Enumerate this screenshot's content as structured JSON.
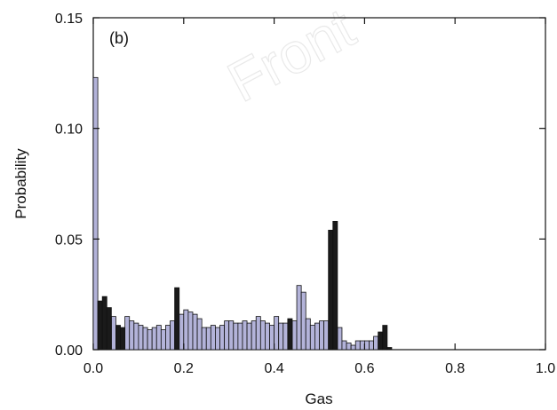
{
  "chart_data": {
    "type": "bar",
    "panel_label": "(b)",
    "watermark": "Front",
    "xlabel": "Gas",
    "ylabel": "Probability",
    "xlim": [
      0.0,
      1.0
    ],
    "ylim": [
      0.0,
      0.15
    ],
    "xticks": [
      "0.0",
      "0.2",
      "0.4",
      "0.6",
      "0.8",
      "1.0"
    ],
    "yticks": [
      "0.00",
      "0.05",
      "0.10",
      "0.15"
    ],
    "bin_width": 0.01,
    "colors": {
      "light": "#b3b3d9",
      "dark": "#1a1a1a",
      "edge": "#111111"
    },
    "series": [
      {
        "color_key": "light",
        "x": [
          0.0,
          0.04,
          0.07,
          0.08,
          0.09,
          0.1,
          0.11,
          0.12,
          0.13,
          0.14,
          0.15,
          0.16,
          0.17,
          0.19,
          0.2,
          0.21,
          0.22,
          0.23,
          0.24,
          0.25,
          0.26,
          0.27,
          0.28,
          0.29,
          0.3,
          0.31,
          0.32,
          0.33,
          0.34,
          0.35,
          0.36,
          0.37,
          0.38,
          0.39,
          0.4,
          0.41,
          0.42,
          0.44,
          0.45,
          0.46,
          0.47,
          0.48,
          0.49,
          0.5,
          0.51,
          0.54,
          0.55,
          0.56,
          0.57,
          0.58,
          0.59,
          0.6,
          0.61,
          0.62
        ],
        "values": [
          0.123,
          0.015,
          0.015,
          0.013,
          0.012,
          0.011,
          0.01,
          0.009,
          0.01,
          0.011,
          0.009,
          0.011,
          0.013,
          0.016,
          0.018,
          0.017,
          0.016,
          0.014,
          0.01,
          0.01,
          0.011,
          0.01,
          0.011,
          0.013,
          0.013,
          0.012,
          0.012,
          0.013,
          0.012,
          0.013,
          0.015,
          0.013,
          0.012,
          0.011,
          0.015,
          0.012,
          0.012,
          0.013,
          0.029,
          0.026,
          0.014,
          0.011,
          0.012,
          0.013,
          0.013,
          0.01,
          0.004,
          0.003,
          0.002,
          0.004,
          0.004,
          0.004,
          0.004,
          0.006
        ]
      },
      {
        "color_key": "dark",
        "x": [
          0.01,
          0.02,
          0.03,
          0.05,
          0.06,
          0.18,
          0.43,
          0.52,
          0.53,
          0.63,
          0.64,
          0.65
        ],
        "values": [
          0.022,
          0.024,
          0.019,
          0.011,
          0.01,
          0.028,
          0.014,
          0.054,
          0.058,
          0.008,
          0.011,
          0.001
        ]
      }
    ]
  }
}
